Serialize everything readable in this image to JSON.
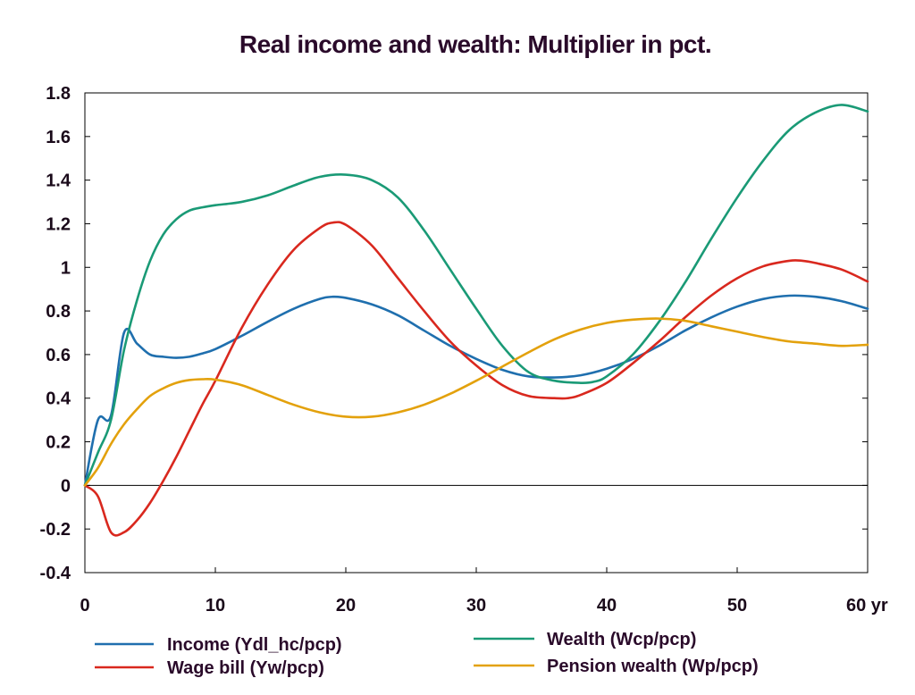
{
  "chart_data": {
    "type": "line",
    "title": "Real income and wealth: Multiplier in pct.",
    "xlabel": "",
    "ylabel": "",
    "x_unit_label": "yr",
    "xlim": [
      0,
      60
    ],
    "ylim": [
      -0.4,
      1.8
    ],
    "x_ticks": [
      0,
      10,
      20,
      30,
      40,
      50,
      60
    ],
    "x_tick_labels": [
      "0",
      "10",
      "20",
      "30",
      "40",
      "50",
      "60 yr"
    ],
    "y_ticks": [
      -0.4,
      -0.2,
      0,
      0.2,
      0.4,
      0.6,
      0.8,
      1,
      1.2,
      1.4,
      1.6,
      1.8
    ],
    "y_tick_labels": [
      "-0.4",
      "-0.2",
      "0",
      "0.2",
      "0.4",
      "0.6",
      "0.8",
      "1",
      "1.2",
      "1.4",
      "1.6",
      "1.8"
    ],
    "grid": false,
    "zero_line": true,
    "legend_position": "bottom",
    "series": [
      {
        "name": "Income (Ydl_hc/pcp)",
        "color": "#1f6fae",
        "x": [
          0,
          1,
          2,
          3,
          4,
          5,
          6,
          7,
          8,
          9,
          10,
          12,
          14,
          16,
          18,
          19,
          20,
          22,
          24,
          26,
          28,
          30,
          32,
          34,
          36,
          38,
          40,
          42,
          44,
          46,
          48,
          50,
          52,
          54,
          56,
          58,
          60
        ],
        "y": [
          0,
          0.3,
          0.32,
          0.7,
          0.65,
          0.6,
          0.59,
          0.585,
          0.59,
          0.605,
          0.625,
          0.685,
          0.75,
          0.81,
          0.855,
          0.865,
          0.86,
          0.83,
          0.78,
          0.71,
          0.64,
          0.58,
          0.53,
          0.5,
          0.495,
          0.505,
          0.535,
          0.58,
          0.64,
          0.71,
          0.77,
          0.82,
          0.855,
          0.87,
          0.865,
          0.845,
          0.81
        ]
      },
      {
        "name": "Wage bill (Yw/pcp)",
        "color": "#d9281e",
        "x": [
          0,
          1,
          2,
          3,
          4,
          5,
          6,
          7,
          8,
          9,
          10,
          12,
          14,
          16,
          18,
          19,
          20,
          22,
          24,
          26,
          28,
          30,
          32,
          34,
          36,
          37,
          38,
          40,
          42,
          44,
          46,
          48,
          50,
          52,
          54,
          55,
          56,
          58,
          60
        ],
        "y": [
          0,
          -0.05,
          -0.215,
          -0.215,
          -0.16,
          -0.08,
          0.02,
          0.13,
          0.25,
          0.37,
          0.48,
          0.72,
          0.92,
          1.08,
          1.18,
          1.205,
          1.195,
          1.1,
          0.95,
          0.8,
          0.66,
          0.55,
          0.46,
          0.41,
          0.4,
          0.4,
          0.415,
          0.47,
          0.56,
          0.66,
          0.77,
          0.87,
          0.95,
          1.005,
          1.03,
          1.03,
          1.02,
          0.99,
          0.935
        ]
      },
      {
        "name": "Wealth (Wcp/pcp)",
        "color": "#1a9a76",
        "x": [
          0,
          1,
          2,
          3,
          4,
          5,
          6,
          7,
          8,
          9,
          10,
          12,
          14,
          16,
          18,
          20,
          22,
          24,
          26,
          28,
          30,
          32,
          34,
          36,
          38,
          39,
          40,
          42,
          44,
          46,
          48,
          50,
          52,
          54,
          56,
          58,
          60
        ],
        "y": [
          0,
          0.15,
          0.3,
          0.62,
          0.85,
          1.03,
          1.15,
          1.22,
          1.26,
          1.275,
          1.285,
          1.3,
          1.33,
          1.375,
          1.415,
          1.425,
          1.4,
          1.32,
          1.17,
          0.99,
          0.81,
          0.64,
          0.52,
          0.48,
          0.47,
          0.475,
          0.5,
          0.6,
          0.75,
          0.93,
          1.13,
          1.32,
          1.49,
          1.63,
          1.71,
          1.745,
          1.715
        ]
      },
      {
        "name": "Pension wealth (Wp/pcp)",
        "color": "#e3a10c",
        "x": [
          0,
          1,
          2,
          3,
          4,
          5,
          6,
          7,
          8,
          9,
          10,
          12,
          14,
          16,
          18,
          20,
          22,
          24,
          26,
          28,
          30,
          32,
          34,
          36,
          38,
          40,
          42,
          44,
          46,
          48,
          50,
          52,
          54,
          56,
          58,
          60
        ],
        "y": [
          0,
          0.08,
          0.19,
          0.28,
          0.35,
          0.41,
          0.445,
          0.47,
          0.483,
          0.487,
          0.485,
          0.46,
          0.415,
          0.37,
          0.335,
          0.315,
          0.315,
          0.335,
          0.37,
          0.42,
          0.48,
          0.545,
          0.61,
          0.67,
          0.715,
          0.745,
          0.76,
          0.765,
          0.755,
          0.73,
          0.705,
          0.68,
          0.66,
          0.65,
          0.64,
          0.645
        ]
      }
    ]
  }
}
